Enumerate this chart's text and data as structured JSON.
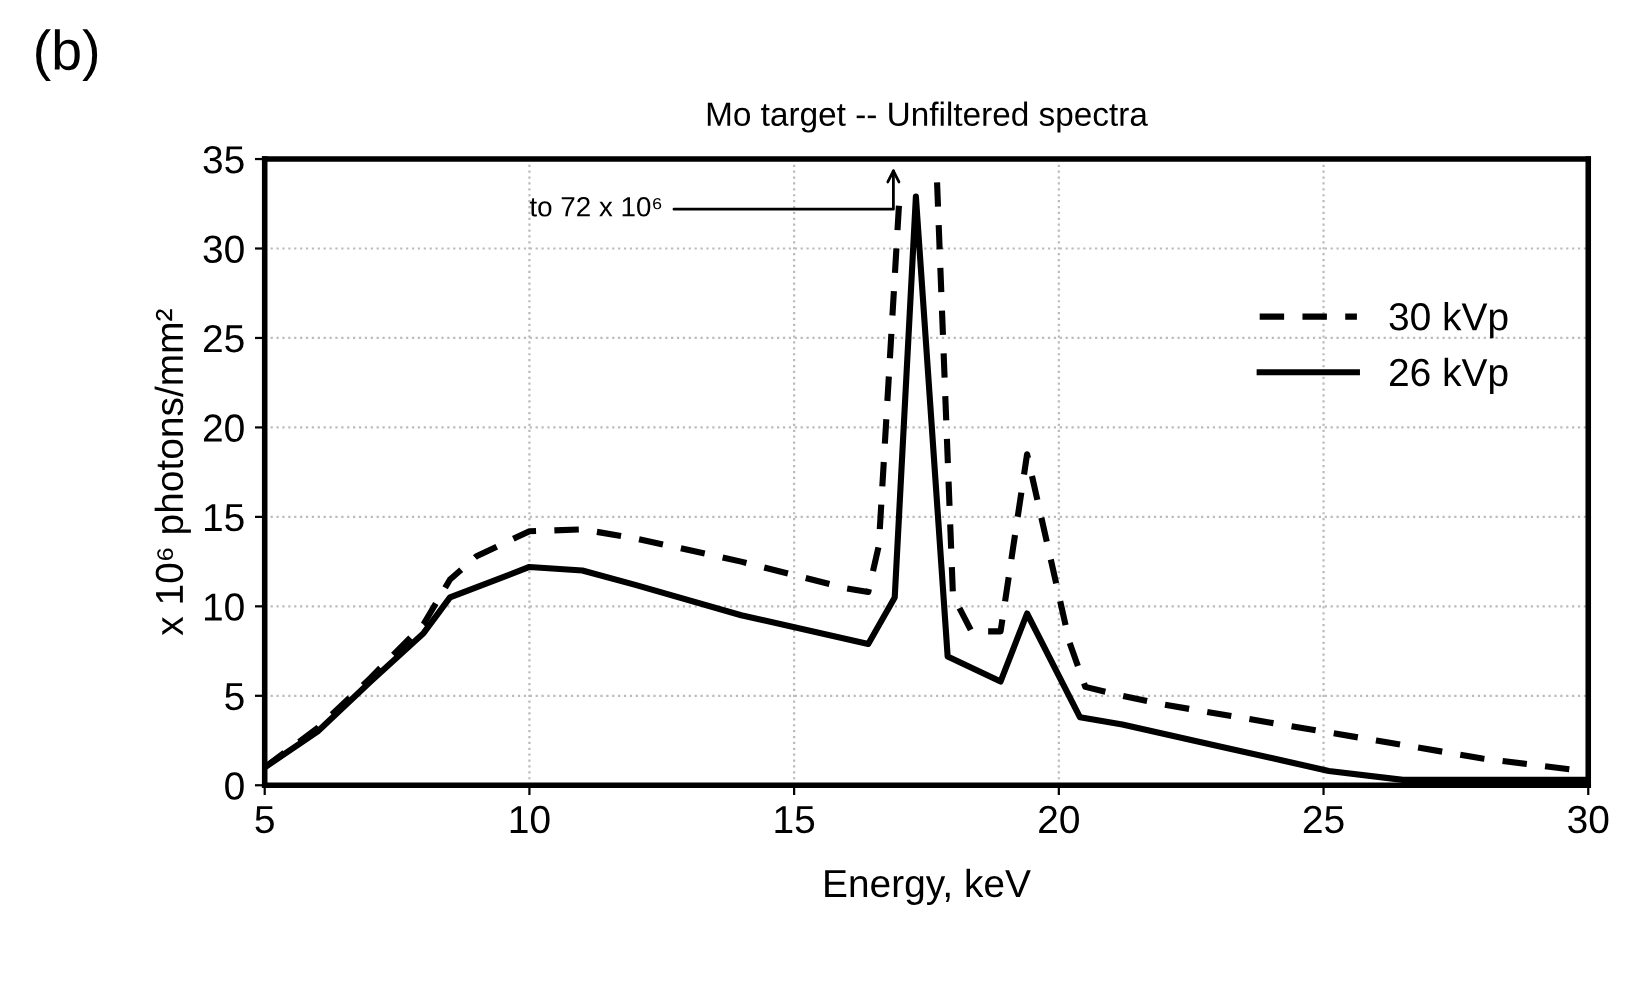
{
  "chart_data": {
    "type": "line",
    "title": "Mo target -- Unfiltered spectra",
    "xlabel": "Energy, keV",
    "ylabel": "x 10⁶ photons/mm²",
    "annotations": [
      "(b)",
      "to 72 x 10⁶"
    ],
    "series": [
      {
        "name": "30 kVp",
        "color": "#000000",
        "line_style": "dashed",
        "x": [
          5,
          6,
          7,
          8,
          8.5,
          9,
          10,
          11,
          12,
          14,
          16,
          16.4,
          16.6,
          17.0,
          17.4,
          17.7,
          18.0,
          18.35,
          18.9,
          19.4,
          20.2,
          20.5,
          21.2,
          22,
          24,
          26,
          28,
          29.9
        ],
        "values": [
          1.0,
          3.2,
          6.0,
          9.0,
          11.5,
          12.8,
          14.2,
          14.3,
          13.8,
          12.5,
          11.0,
          10.8,
          13.4,
          33.4,
          null,
          33.7,
          10.6,
          8.6,
          8.6,
          18.5,
          8.0,
          5.5,
          5.0,
          4.5,
          3.5,
          2.5,
          1.5,
          0.8
        ]
      },
      {
        "name": "26 kVp",
        "color": "#000000",
        "line_style": "solid",
        "x": [
          5,
          6,
          7,
          8,
          8.5,
          10,
          11,
          12,
          14,
          16.4,
          16.9,
          17.3,
          17.9,
          18.9,
          19.4,
          20.4,
          21.2,
          23,
          25.1,
          26.5,
          30
        ],
        "values": [
          1.0,
          3.0,
          5.8,
          8.5,
          10.5,
          12.2,
          12.0,
          11.2,
          9.5,
          7.9,
          10.5,
          32.9,
          7.2,
          5.8,
          9.6,
          3.8,
          3.4,
          2.2,
          0.8,
          0.3,
          0.3
        ]
      }
    ],
    "xlim": [
      5,
      30
    ],
    "ylim": [
      0,
      35
    ],
    "xticks": [
      5,
      10,
      15,
      20,
      25,
      30
    ],
    "yticks": [
      0,
      5,
      10,
      15,
      20,
      25,
      30,
      35
    ],
    "grid": true,
    "legend": "top right"
  }
}
